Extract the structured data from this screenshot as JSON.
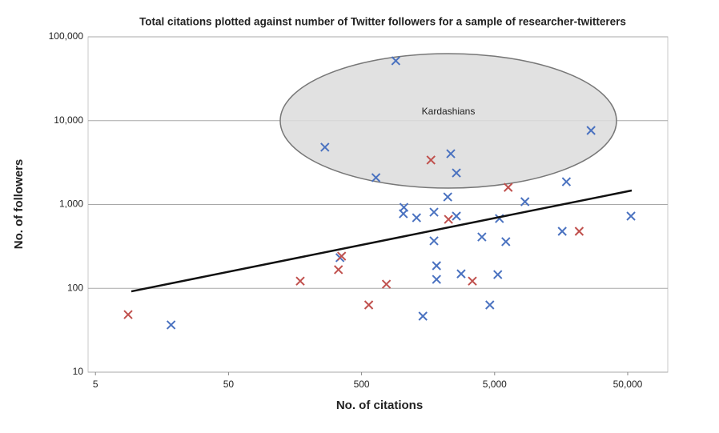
{
  "chart_data": {
    "type": "scatter",
    "title": "Total citations plotted against number of Twitter followers for a sample of researcher-twitterers",
    "x_label": "No. of citations",
    "y_label": "No. of followers",
    "log_x": true,
    "log_y": true,
    "grid": true,
    "xlim": [
      4.4,
      100000
    ],
    "ylim": [
      10,
      100000
    ],
    "xticks": [
      5,
      50,
      500,
      {
        "value": 5000,
        "label": "5,000"
      },
      {
        "value": 50000,
        "label": "50,000"
      }
    ],
    "yticks": [
      10,
      100,
      {
        "value": 1000,
        "label": "1,000"
      },
      {
        "value": 10000,
        "label": "10,000"
      },
      {
        "value": 100000,
        "label": "100,000"
      }
    ],
    "annotation": "Kardashians",
    "series": [
      {
        "color": "#4a72c0",
        "x": [
          904,
          26500,
          265,
          2340,
          641,
          2580,
          17300,
          2220,
          8450,
          1040,
          1030,
          1295,
          1750,
          2580,
          5430,
          52900,
          1750,
          4010,
          6070,
          16100,
          344,
          1830,
          1830,
          2800,
          5280,
          18.5,
          1445,
          4600
        ],
        "values": [
          51800,
          7640,
          4820,
          4030,
          2090,
          2380,
          1870,
          1230,
          1080,
          925,
          776,
          695,
          811,
          727,
          680,
          727,
          368,
          410,
          360,
          479,
          232,
          186,
          128,
          149,
          146,
          36.6,
          46.6,
          63.4
        ]
      },
      {
        "color": "#c0504d",
        "x": [
          8.8,
          1660,
          6320,
          2250,
          21600,
          354,
          335,
          173,
          768,
          566,
          3400
        ],
        "values": [
          48.6,
          3390,
          1600,
          665,
          479,
          242,
          167,
          122,
          112,
          63.4,
          122
        ]
      }
    ],
    "trendline": {
      "color": "#111111",
      "x": [
        9.3,
        53600
      ],
      "values": [
        92,
        1470
      ]
    }
  }
}
